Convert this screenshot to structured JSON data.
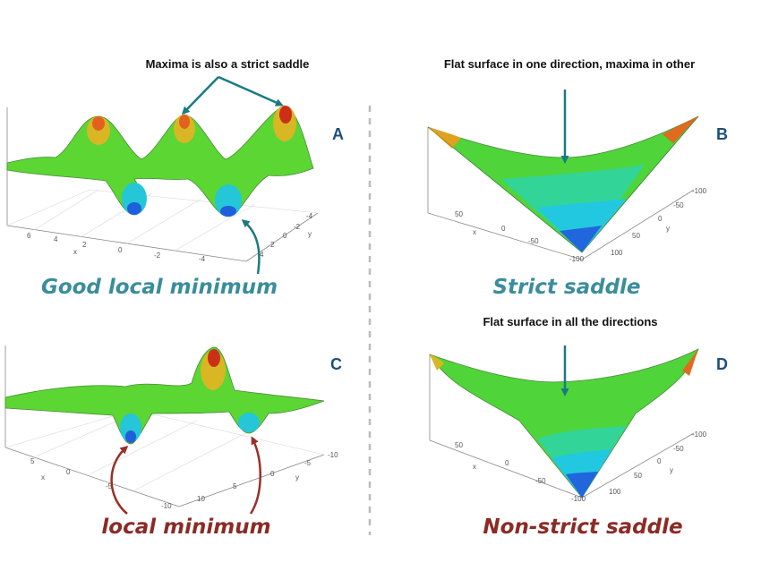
{
  "panels": {
    "A": {
      "letter": "A",
      "note": "Maxima is also a strict saddle",
      "caption": "Good local minimum",
      "x_ticks": [
        "6",
        "4",
        "2",
        "x",
        "0",
        "-2",
        "-4"
      ],
      "y_ticks": [
        "-4",
        "-2",
        "0",
        "2",
        "4",
        "y"
      ]
    },
    "B": {
      "letter": "B",
      "note": "Flat surface in one direction, maxima in other",
      "caption": "Strict saddle",
      "x_ticks": [
        "50",
        "x",
        "0",
        "-50",
        "-100"
      ],
      "y_ticks": [
        "-100",
        "-50",
        "0",
        "50",
        "100",
        "y"
      ]
    },
    "C": {
      "letter": "C",
      "caption": "local minimum",
      "x_ticks": [
        "5",
        "x",
        "0",
        "-5",
        "-10"
      ],
      "y_ticks": [
        "-10",
        "-5",
        "0",
        "5",
        "10",
        "y"
      ]
    },
    "D": {
      "letter": "D",
      "note": "Flat surface in all the directions",
      "caption": "Non-strict saddle",
      "x_ticks": [
        "50",
        "x",
        "0",
        "-50",
        "-100"
      ],
      "y_ticks": [
        "-100",
        "-50",
        "0",
        "50",
        "100",
        "y"
      ]
    }
  },
  "colors": {
    "teal_caption": "#3a8d9c",
    "red_caption": "#8b2b25",
    "teal_arrow": "#1a7a82",
    "red_arrow": "#9a2f28",
    "letter": "#1d4f7c",
    "divider": "#bbbbbb"
  }
}
